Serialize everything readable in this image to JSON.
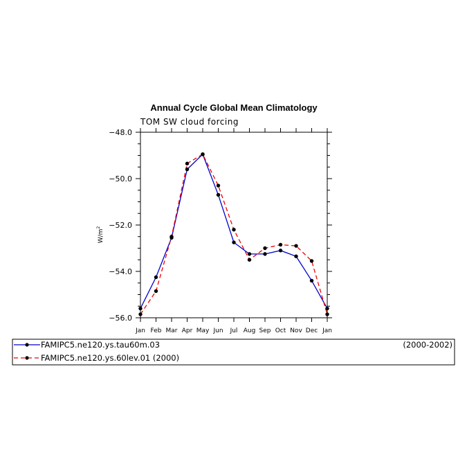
{
  "chart_data": {
    "type": "line",
    "title": "Annual Cycle Global Mean Climatology",
    "subtitle": "TOM SW cloud forcing",
    "ylabel": "W/m",
    "ylabel_sup": "2",
    "ylim": [
      -56.0,
      -48.0
    ],
    "yticks": [
      "-48.0",
      "-50.0",
      "-52.0",
      "-54.0",
      "-56.0"
    ],
    "categories": [
      "Jan",
      "Feb",
      "Mar",
      "Apr",
      "May",
      "Jun",
      "Jul",
      "Aug",
      "Sep",
      "Oct",
      "Nov",
      "Dec",
      "Jan"
    ],
    "series": [
      {
        "name": "FAMIPC5.ne120.ys.tau60m.03",
        "period": "(2000-2002)",
        "color": "#0000cc",
        "dash": "solid",
        "values": [
          -55.6,
          -54.25,
          -52.55,
          -49.6,
          -48.95,
          -50.7,
          -52.75,
          -53.25,
          -53.25,
          -53.1,
          -53.35,
          -54.4,
          -55.6
        ]
      },
      {
        "name": "FAMIPC5.ne120.ys.60lev.01 (2000)",
        "period": "",
        "color": "#ee0000",
        "dash": "dashed",
        "values": [
          -55.85,
          -54.85,
          -52.5,
          -49.35,
          -48.95,
          -50.3,
          -52.2,
          -53.5,
          -53.0,
          -52.85,
          -52.9,
          -53.55,
          -55.85
        ]
      }
    ]
  }
}
